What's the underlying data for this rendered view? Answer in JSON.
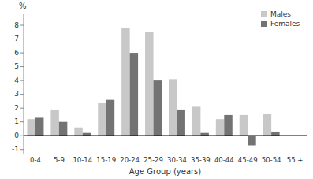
{
  "chart_data": {
    "type": "bar",
    "categories": [
      "0-4",
      "5-9",
      "10-14",
      "15-19",
      "20-24",
      "25-29",
      "30-34",
      "35-39",
      "40-44",
      "45-49",
      "50-54",
      "55 +"
    ],
    "series": [
      {
        "name": "Males",
        "color": "#c8c8c8",
        "values": [
          1.2,
          1.9,
          0.6,
          2.4,
          7.8,
          7.5,
          4.1,
          2.1,
          1.2,
          1.5,
          1.6,
          0.0
        ]
      },
      {
        "name": "Females",
        "color": "#737373",
        "values": [
          1.3,
          1.0,
          0.2,
          2.6,
          6.0,
          4.0,
          1.9,
          0.2,
          1.5,
          -0.7,
          0.3,
          0.0
        ]
      }
    ],
    "xlabel": "Age Group (years)",
    "ylabel": "%",
    "ylim": [
      -1.3,
      8.8
    ],
    "yticks": [
      -1,
      0,
      1,
      2,
      3,
      4,
      5,
      6,
      7,
      8
    ],
    "grid": false,
    "legend": "upper right"
  }
}
